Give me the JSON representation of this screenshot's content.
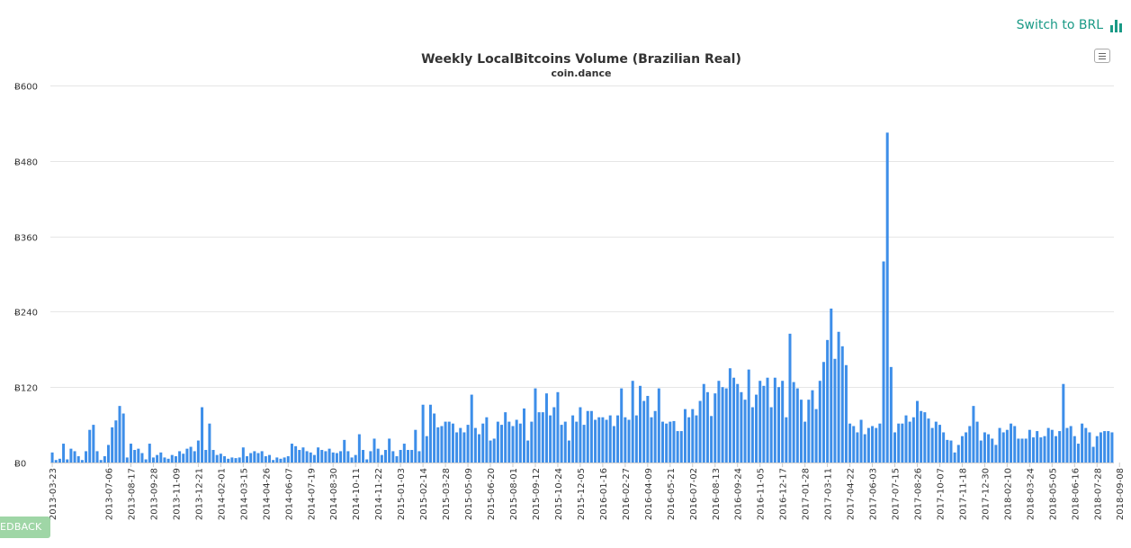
{
  "switch_button": {
    "label": "Switch to BRL",
    "icon": "bar-chart-icon",
    "color": "#1a9a86"
  },
  "menu_button": {
    "icon": "hamburger-menu-icon"
  },
  "feedback": {
    "label": "EDBACK",
    "color": "#9fd6a6"
  },
  "colors": {
    "bar": "#3d8ee9",
    "grid": "#e6e6e6",
    "title": "#333333",
    "axis_text": "#333333"
  },
  "chart_data": {
    "type": "bar",
    "title": "Weekly LocalBitcoins Volume (Brazilian Real)",
    "subtitle": "coin.dance",
    "xlabel": "",
    "ylabel": "",
    "ylim": [
      0,
      600
    ],
    "yticks": [
      0,
      120,
      240,
      360,
      480,
      600
    ],
    "ytick_labels": [
      "Ƀ0",
      "Ƀ120",
      "Ƀ240",
      "Ƀ360",
      "Ƀ480",
      "Ƀ600"
    ],
    "grid": true,
    "legend": "none",
    "start_date": "2013-03-23",
    "xtick_labels": [
      {
        "label": "2013-03-23",
        "index": 0
      },
      {
        "label": "2013-07-06",
        "index": 15
      },
      {
        "label": "2013-08-17",
        "index": 21
      },
      {
        "label": "2013-09-28",
        "index": 27
      },
      {
        "label": "2013-11-09",
        "index": 33
      },
      {
        "label": "2013-12-21",
        "index": 39
      },
      {
        "label": "2014-02-01",
        "index": 45
      },
      {
        "label": "2014-03-15",
        "index": 51
      },
      {
        "label": "2014-04-26",
        "index": 57
      },
      {
        "label": "2014-06-07",
        "index": 63
      },
      {
        "label": "2014-07-19",
        "index": 69
      },
      {
        "label": "2014-08-30",
        "index": 75
      },
      {
        "label": "2014-10-11",
        "index": 81
      },
      {
        "label": "2014-11-22",
        "index": 87
      },
      {
        "label": "2015-01-03",
        "index": 93
      },
      {
        "label": "2015-02-14",
        "index": 99
      },
      {
        "label": "2015-03-28",
        "index": 105
      },
      {
        "label": "2015-05-09",
        "index": 111
      },
      {
        "label": "2015-06-20",
        "index": 117
      },
      {
        "label": "2015-08-01",
        "index": 123
      },
      {
        "label": "2015-09-12",
        "index": 129
      },
      {
        "label": "2015-10-24",
        "index": 135
      },
      {
        "label": "2015-12-05",
        "index": 141
      },
      {
        "label": "2016-01-16",
        "index": 147
      },
      {
        "label": "2016-02-27",
        "index": 153
      },
      {
        "label": "2016-04-09",
        "index": 159
      },
      {
        "label": "2016-05-21",
        "index": 165
      },
      {
        "label": "2016-07-02",
        "index": 171
      },
      {
        "label": "2016-08-13",
        "index": 177
      },
      {
        "label": "2016-09-24",
        "index": 183
      },
      {
        "label": "2016-11-05",
        "index": 189
      },
      {
        "label": "2016-12-17",
        "index": 195
      },
      {
        "label": "2017-01-28",
        "index": 201
      },
      {
        "label": "2017-03-11",
        "index": 207
      },
      {
        "label": "2017-04-22",
        "index": 213
      },
      {
        "label": "2017-06-03",
        "index": 219
      },
      {
        "label": "2017-07-15",
        "index": 225
      },
      {
        "label": "2017-08-26",
        "index": 231
      },
      {
        "label": "2017-10-07",
        "index": 237
      },
      {
        "label": "2017-11-18",
        "index": 243
      },
      {
        "label": "2017-12-30",
        "index": 249
      },
      {
        "label": "2018-02-10",
        "index": 255
      },
      {
        "label": "2018-03-24",
        "index": 261
      },
      {
        "label": "2018-05-05",
        "index": 267
      },
      {
        "label": "2018-06-16",
        "index": 273
      },
      {
        "label": "2018-07-28",
        "index": 279
      },
      {
        "label": "2018-09-08",
        "index": 285
      }
    ],
    "values": [
      16,
      4,
      6,
      30,
      5,
      22,
      18,
      10,
      4,
      18,
      52,
      60,
      18,
      4,
      10,
      28,
      56,
      67,
      90,
      78,
      8,
      30,
      20,
      22,
      15,
      5,
      30,
      8,
      12,
      16,
      8,
      6,
      12,
      10,
      18,
      14,
      22,
      25,
      18,
      35,
      88,
      20,
      62,
      20,
      12,
      14,
      10,
      6,
      8,
      7,
      8,
      24,
      10,
      15,
      18,
      15,
      18,
      10,
      12,
      4,
      8,
      6,
      8,
      10,
      30,
      26,
      20,
      24,
      18,
      16,
      12,
      24,
      20,
      18,
      22,
      16,
      15,
      18,
      36,
      18,
      8,
      12,
      45,
      20,
      5,
      18,
      38,
      22,
      12,
      20,
      38,
      18,
      10,
      20,
      30,
      20,
      20,
      52,
      18,
      92,
      42,
      92,
      78,
      56,
      58,
      65,
      65,
      62,
      48,
      55,
      48,
      60,
      108,
      55,
      45,
      62,
      72,
      35,
      38,
      65,
      60,
      80,
      65,
      58,
      68,
      62,
      86,
      35,
      65,
      118,
      80,
      80,
      110,
      75,
      88,
      112,
      60,
      65,
      35,
      75,
      65,
      88,
      60,
      82,
      82,
      68,
      72,
      72,
      68,
      75,
      58,
      75,
      118,
      72,
      68,
      130,
      75,
      122,
      98,
      106,
      72,
      82,
      118,
      65,
      62,
      65,
      66,
      50,
      50,
      85,
      72,
      85,
      75,
      98,
      125,
      112,
      74,
      110,
      130,
      120,
      118,
      150,
      135,
      125,
      112,
      100,
      148,
      88,
      108,
      130,
      122,
      135,
      88,
      135,
      120,
      130,
      72,
      205,
      128,
      118,
      100,
      65,
      100,
      115,
      85,
      130,
      160,
      195,
      245,
      165,
      208,
      185,
      155,
      62,
      58,
      48,
      68,
      45,
      55,
      58,
      55,
      62,
      320,
      525,
      152,
      48,
      62,
      62,
      75,
      65,
      72,
      98,
      82,
      80,
      70,
      55,
      65,
      60,
      48,
      36,
      35,
      16,
      28,
      42,
      48,
      58,
      90,
      65,
      35,
      48,
      45,
      38,
      28,
      55,
      48,
      52,
      62,
      58,
      38,
      38,
      38,
      52,
      40,
      50,
      40,
      42,
      55,
      52,
      42,
      50,
      125,
      55,
      58,
      42,
      30,
      62,
      55,
      48,
      25,
      42,
      48,
      50,
      50,
      48
    ]
  }
}
